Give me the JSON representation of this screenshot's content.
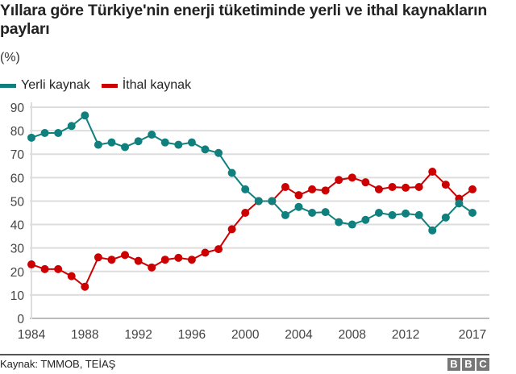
{
  "title": "Yıllara göre Türkiye'nin enerji tüketiminde yerli ve ithal kaynakların payları",
  "subtitle": "(%)",
  "legend": [
    {
      "label": "Yerli kaynak",
      "color": "#10807e"
    },
    {
      "label": "İthal kaynak",
      "color": "#cc0000"
    }
  ],
  "source": "Kaynak: TMMOB, TEİAŞ",
  "logo": [
    "B",
    "B",
    "C"
  ],
  "chart_data": {
    "type": "line",
    "title": "Yıllara göre Türkiye'nin enerji tüketiminde yerli ve ithal kaynakların payları",
    "subtitle": "(%)",
    "xlabel": "",
    "ylabel": "%",
    "ylim": [
      0,
      90
    ],
    "yticks": [
      0,
      10,
      20,
      30,
      40,
      50,
      60,
      70,
      80,
      90
    ],
    "xtick_labels": [
      "1984",
      "1988",
      "1992",
      "1996",
      "2000",
      "2004",
      "2008",
      "2012",
      "2017"
    ],
    "grid": true,
    "legend_position": "top-left",
    "x": [
      1984,
      1985,
      1986,
      1987,
      1988,
      1989,
      1990,
      1991,
      1992,
      1993,
      1994,
      1995,
      1996,
      1997,
      1998,
      1999,
      2000,
      2001,
      2002,
      2003,
      2004,
      2005,
      2006,
      2007,
      2008,
      2009,
      2010,
      2011,
      2012,
      2013,
      2014,
      2015,
      2016,
      2017
    ],
    "series": [
      {
        "name": "Yerli kaynak",
        "color": "#10807e",
        "values": [
          77,
          79,
          79,
          82,
          86.5,
          74,
          75,
          73,
          75.5,
          78.3,
          75,
          74,
          75,
          72,
          70.5,
          62,
          55,
          50,
          50,
          44,
          47.5,
          45,
          45.3,
          41,
          40,
          42,
          45,
          44,
          44.7,
          44,
          37.5,
          43,
          49,
          45
        ]
      },
      {
        "name": "İthal kaynak",
        "color": "#cc0000",
        "values": [
          23,
          21,
          21,
          18,
          13.5,
          26,
          25,
          27,
          24.5,
          21.7,
          25,
          25.8,
          25,
          28,
          29.5,
          38,
          45,
          50,
          50,
          56,
          52.5,
          55,
          54.5,
          59,
          60,
          58,
          55,
          56,
          55.7,
          56,
          62.5,
          57,
          51,
          55
        ]
      }
    ]
  }
}
